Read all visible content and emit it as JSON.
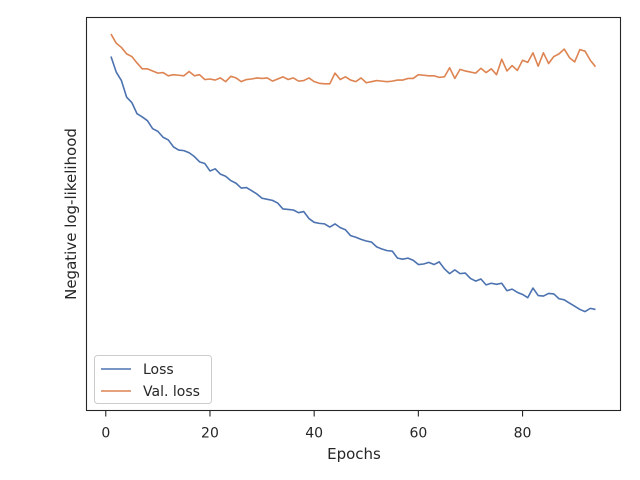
{
  "chart_data": {
    "type": "line",
    "xlabel": "Epochs",
    "ylabel": "Negative log-likelihood",
    "xlim": [
      -3.7,
      98.8
    ],
    "ylim": [
      0.035,
      0.77
    ],
    "x_ticks": [
      0,
      20,
      40,
      60,
      80
    ],
    "y_ticks_shown": false,
    "grid": false,
    "legend_position": "lower left",
    "x": [
      1,
      2,
      3,
      4,
      5,
      6,
      7,
      8,
      9,
      10,
      11,
      12,
      13,
      14,
      15,
      16,
      17,
      18,
      19,
      20,
      21,
      22,
      23,
      24,
      25,
      26,
      27,
      28,
      29,
      30,
      31,
      32,
      33,
      34,
      35,
      36,
      37,
      38,
      39,
      40,
      41,
      42,
      43,
      44,
      45,
      46,
      47,
      48,
      49,
      50,
      51,
      52,
      53,
      54,
      55,
      56,
      57,
      58,
      59,
      60,
      61,
      62,
      63,
      64,
      65,
      66,
      67,
      68,
      69,
      70,
      71,
      72,
      73,
      74,
      75,
      76,
      77,
      78,
      79,
      80,
      81,
      82,
      83,
      84,
      85,
      86,
      87,
      88,
      89,
      90,
      91,
      92,
      93,
      94
    ],
    "series": [
      {
        "name": "Loss",
        "color": "#4c72b0",
        "values": [
          0.697,
          0.668,
          0.652,
          0.621,
          0.611,
          0.59,
          0.584,
          0.577,
          0.562,
          0.557,
          0.546,
          0.541,
          0.528,
          0.522,
          0.521,
          0.517,
          0.51,
          0.5,
          0.497,
          0.483,
          0.487,
          0.477,
          0.473,
          0.465,
          0.46,
          0.451,
          0.452,
          0.446,
          0.44,
          0.432,
          0.43,
          0.428,
          0.423,
          0.412,
          0.411,
          0.41,
          0.405,
          0.407,
          0.394,
          0.387,
          0.385,
          0.384,
          0.378,
          0.384,
          0.377,
          0.373,
          0.362,
          0.359,
          0.355,
          0.352,
          0.35,
          0.341,
          0.337,
          0.334,
          0.333,
          0.32,
          0.318,
          0.32,
          0.316,
          0.308,
          0.309,
          0.312,
          0.308,
          0.313,
          0.3,
          0.291,
          0.298,
          0.291,
          0.292,
          0.282,
          0.277,
          0.281,
          0.27,
          0.273,
          0.271,
          0.273,
          0.259,
          0.262,
          0.256,
          0.252,
          0.246,
          0.264,
          0.25,
          0.249,
          0.254,
          0.253,
          0.244,
          0.242,
          0.236,
          0.23,
          0.224,
          0.22,
          0.226,
          0.224
        ]
      },
      {
        "name": "Val. loss",
        "color": "#dd8452",
        "values": [
          0.739,
          0.722,
          0.714,
          0.702,
          0.697,
          0.685,
          0.674,
          0.674,
          0.67,
          0.666,
          0.667,
          0.661,
          0.663,
          0.662,
          0.661,
          0.669,
          0.661,
          0.663,
          0.654,
          0.655,
          0.653,
          0.657,
          0.65,
          0.66,
          0.657,
          0.65,
          0.654,
          0.655,
          0.657,
          0.656,
          0.657,
          0.651,
          0.655,
          0.659,
          0.654,
          0.657,
          0.651,
          0.652,
          0.657,
          0.65,
          0.647,
          0.646,
          0.646,
          0.666,
          0.654,
          0.659,
          0.653,
          0.65,
          0.657,
          0.648,
          0.65,
          0.652,
          0.651,
          0.65,
          0.651,
          0.653,
          0.653,
          0.656,
          0.656,
          0.663,
          0.662,
          0.661,
          0.661,
          0.658,
          0.659,
          0.676,
          0.656,
          0.673,
          0.67,
          0.668,
          0.666,
          0.675,
          0.667,
          0.674,
          0.663,
          0.692,
          0.67,
          0.68,
          0.671,
          0.69,
          0.686,
          0.704,
          0.679,
          0.704,
          0.684,
          0.697,
          0.702,
          0.711,
          0.695,
          0.687,
          0.71,
          0.707,
          0.69,
          0.678
        ]
      }
    ]
  }
}
